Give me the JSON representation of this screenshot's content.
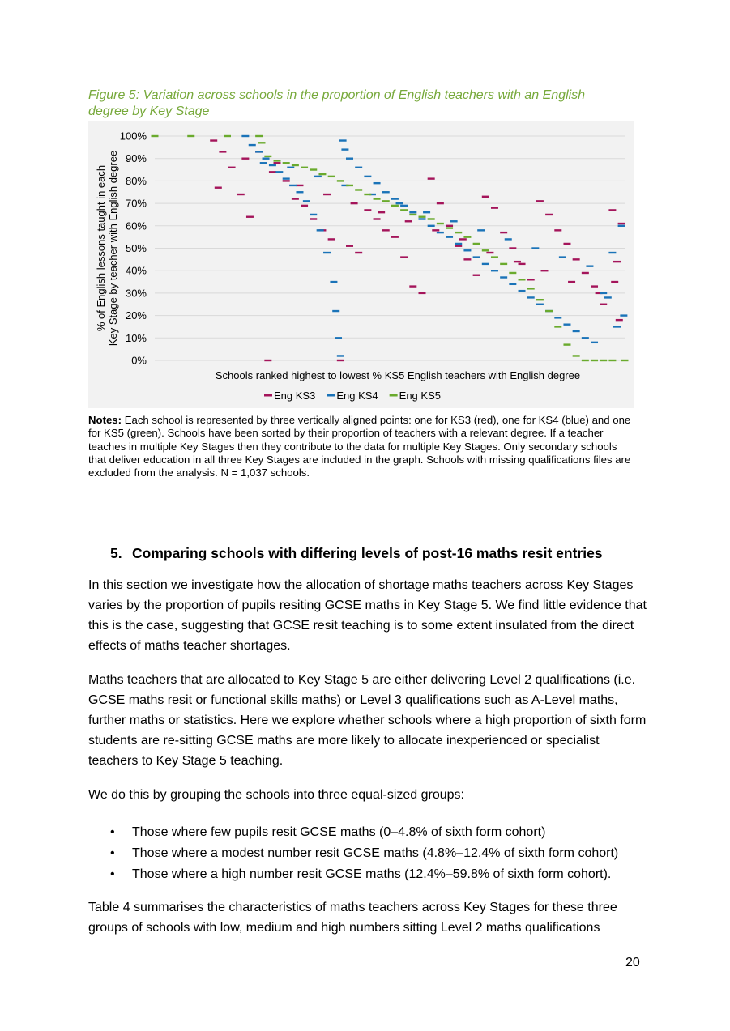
{
  "figure": {
    "caption": "Figure 5: Variation across schools in the proportion of English teachers with an English degree by Key Stage"
  },
  "chart_data": {
    "type": "scatter",
    "title": "",
    "xlabel": "Schools ranked highest to lowest % KS5 English teachers with English degree",
    "ylabel": "% of English lessons taught in each Key Stage by teacher with English degree",
    "y_ticks": [
      "0%",
      "10%",
      "20%",
      "30%",
      "40%",
      "50%",
      "60%",
      "70%",
      "80%",
      "90%",
      "100%"
    ],
    "ylim": [
      0,
      100
    ],
    "x_count": 1037,
    "grid": true,
    "legend_position": "bottom",
    "marker": "dash",
    "note": "Approximate values read from the figure; sampled every ~10 ranked schools",
    "series": [
      {
        "name": "Eng KS3",
        "color": "#a4145a",
        "x": [
          130,
          150,
          170,
          190,
          210,
          230,
          250,
          270,
          290,
          310,
          330,
          350,
          370,
          390,
          410,
          430,
          450,
          470,
          490,
          510,
          530,
          550,
          570,
          590,
          610,
          630,
          650,
          670,
          690,
          710,
          730,
          750,
          770,
          790,
          810,
          830,
          850,
          870,
          890,
          910,
          930,
          950,
          970,
          990,
          1010,
          1030,
          140,
          200,
          260,
          320,
          380,
          440,
          500,
          560,
          620,
          680,
          740,
          800,
          860,
          920,
          980,
          1020,
          1015,
          1025
        ],
        "values": [
          98,
          93,
          86,
          74,
          64,
          93,
          0,
          88,
          80,
          72,
          69,
          63,
          58,
          54,
          0,
          51,
          48,
          67,
          63,
          58,
          55,
          46,
          33,
          30,
          81,
          70,
          60,
          51,
          45,
          38,
          73,
          68,
          57,
          50,
          43,
          36,
          71,
          65,
          58,
          52,
          45,
          39,
          33,
          25,
          67,
          61,
          77,
          90,
          84,
          78,
          74,
          70,
          66,
          62,
          58,
          54,
          48,
          44,
          40,
          35,
          30,
          44,
          35,
          18
        ]
      },
      {
        "name": "Eng KS4",
        "color": "#1a73b8",
        "x": [
          200,
          215,
          230,
          245,
          260,
          275,
          290,
          305,
          320,
          335,
          350,
          365,
          380,
          395,
          400,
          405,
          410,
          415,
          420,
          430,
          450,
          470,
          490,
          510,
          530,
          550,
          570,
          590,
          610,
          630,
          650,
          670,
          690,
          710,
          730,
          750,
          770,
          790,
          810,
          830,
          850,
          870,
          890,
          910,
          930,
          950,
          970,
          990,
          1010,
          1030,
          1035,
          240,
          300,
          360,
          420,
          480,
          540,
          600,
          660,
          720,
          780,
          840,
          900,
          960,
          1000,
          1020
        ],
        "values": [
          100,
          96,
          93,
          90,
          87,
          84,
          81,
          78,
          75,
          71,
          65,
          58,
          48,
          35,
          22,
          10,
          2,
          98,
          94,
          90,
          86,
          82,
          79,
          75,
          72,
          69,
          66,
          63,
          60,
          57,
          55,
          52,
          49,
          46,
          43,
          40,
          37,
          34,
          31,
          28,
          25,
          22,
          19,
          16,
          13,
          10,
          8,
          30,
          48,
          60,
          20,
          88,
          86,
          82,
          78,
          74,
          70,
          66,
          62,
          58,
          54,
          50,
          46,
          42,
          28,
          15
        ]
      },
      {
        "name": "Eng KS5",
        "color": "#6aaa2d",
        "x": [
          0,
          80,
          160,
          230,
          236,
          250,
          270,
          290,
          310,
          330,
          350,
          370,
          390,
          410,
          430,
          450,
          470,
          490,
          510,
          530,
          550,
          570,
          590,
          610,
          630,
          650,
          670,
          690,
          710,
          730,
          750,
          770,
          790,
          810,
          830,
          850,
          870,
          890,
          910,
          930,
          950,
          970,
          990,
          1010,
          1037
        ],
        "values": [
          100,
          100,
          100,
          100,
          97,
          91,
          89,
          88,
          87,
          86,
          85,
          83,
          82,
          80,
          78,
          76,
          74,
          72,
          71,
          69,
          67,
          65,
          64,
          63,
          61,
          59,
          57,
          55,
          52,
          49,
          46,
          43,
          39,
          36,
          32,
          27,
          22,
          15,
          7,
          2,
          0,
          0,
          0,
          0,
          0
        ]
      }
    ]
  },
  "notes": {
    "label": "Notes:",
    "text": " Each school is represented by three vertically aligned points: one for KS3 (red), one for KS4 (blue) and one for KS5 (green). Schools have been sorted by their proportion of teachers with a relevant degree. If a teacher teaches in multiple Key Stages then they contribute to the data for multiple Key Stages. Only secondary schools that deliver education in all three Key Stages are included in the graph. Schools with missing qualifications files are excluded from the analysis. N = 1,037 schools."
  },
  "section": {
    "number": "5.",
    "title": "Comparing schools with differing levels of post-16 maths resit entries"
  },
  "paragraphs": [
    "In this section we investigate how the allocation of shortage maths teachers across Key Stages varies by the proportion of pupils resiting GCSE maths in Key Stage 5. We find little evidence that this is the case, suggesting that GCSE resit teaching is to some extent insulated from the direct effects of maths teacher shortages.",
    "Maths teachers that are allocated to Key Stage 5 are either delivering Level 2 qualifications (i.e. GCSE maths resit or functional skills maths) or Level 3 qualifications such as A-Level maths, further maths or statistics. Here we explore whether schools where a high proportion of sixth form students are re-sitting GCSE maths are more likely to allocate inexperienced or specialist teachers to Key Stage 5 teaching.",
    "We do this by grouping the schools into three equal-sized groups:"
  ],
  "bullets": [
    "Those where few pupils resit GCSE maths (0–4.8% of sixth form cohort)",
    "Those where a modest number resit GCSE maths (4.8%–12.4% of sixth form cohort)",
    "Those where a high number resit GCSE maths (12.4%–59.8% of sixth form cohort)."
  ],
  "closing_paragraph": "Table 4 summarises the characteristics of maths teachers across Key Stages for these three groups of schools with low, medium and high numbers sitting Level 2 maths qualifications",
  "page_number": "20"
}
